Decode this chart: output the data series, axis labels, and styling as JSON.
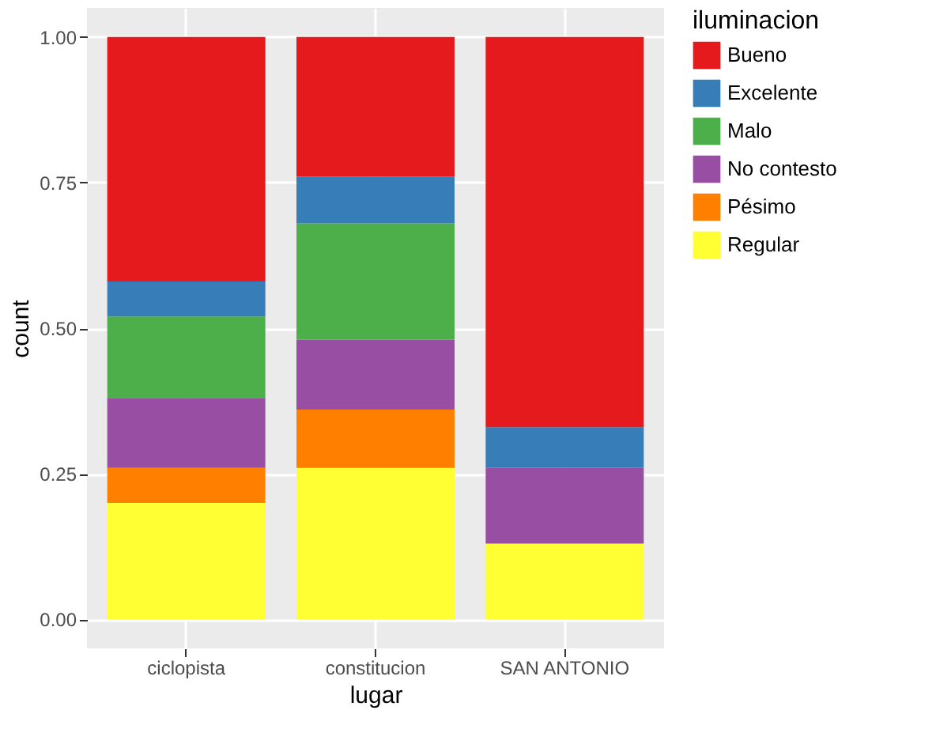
{
  "chart_data": {
    "type": "bar",
    "stacked": true,
    "xlabel": "lugar",
    "ylabel": "count",
    "legend_title": "iluminacion",
    "categories": [
      "ciclopista",
      "constitucion",
      "SAN ANTONIO"
    ],
    "series": [
      {
        "name": "Regular",
        "color": "#ffff33",
        "values": [
          0.2,
          0.26,
          0.13
        ]
      },
      {
        "name": "Pésimo",
        "color": "#ff7f00",
        "values": [
          0.06,
          0.1,
          null
        ]
      },
      {
        "name": "No contesto",
        "color": "#984ea3",
        "values": [
          0.12,
          0.12,
          0.13
        ]
      },
      {
        "name": "Malo",
        "color": "#4daf4a",
        "values": [
          0.14,
          0.2,
          null
        ]
      },
      {
        "name": "Excelente",
        "color": "#377eb8",
        "values": [
          0.06,
          0.08,
          0.07
        ]
      },
      {
        "name": "Bueno",
        "color": "#e41a1c",
        "values": [
          0.42,
          0.24,
          0.67
        ]
      }
    ],
    "ylim": [
      -0.05,
      1.05
    ],
    "yticks": [
      {
        "value": 0,
        "label": "0.00"
      },
      {
        "value": 0.25,
        "label": "0.25"
      },
      {
        "value": 0.5,
        "label": "0.50"
      },
      {
        "value": 0.75,
        "label": "0.75"
      },
      {
        "value": 1,
        "label": "1.00"
      }
    ],
    "grid": true,
    "legend": "right"
  }
}
